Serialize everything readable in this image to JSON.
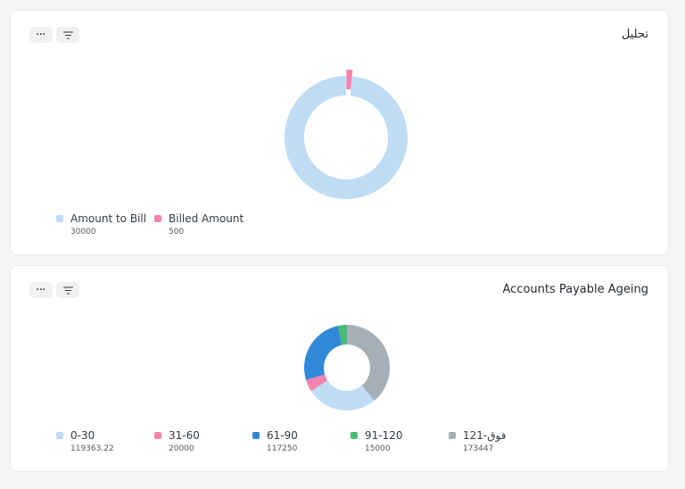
{
  "cards": [
    {
      "title": "تحليل",
      "more_label": "...",
      "chart_data": {
        "type": "pie",
        "title": "تحليل",
        "donut": true,
        "categories": [
          "Amount to Bill",
          "Billed Amount"
        ],
        "values": [
          30000,
          500
        ],
        "value_labels": [
          "30000",
          "500"
        ],
        "colors": [
          "#bfdcf5",
          "#f683ae"
        ],
        "legend_position": "bottom-left"
      }
    },
    {
      "title": "Accounts Payable Ageing",
      "more_label": "...",
      "chart_data": {
        "type": "pie",
        "title": "Accounts Payable Ageing",
        "donut": true,
        "categories": [
          "0-30",
          "31-60",
          "61-90",
          "91-120",
          "121-فوق"
        ],
        "values": [
          119363.22,
          20000,
          117250,
          15000,
          173447
        ],
        "value_labels": [
          "119363.22",
          "20000",
          "117250",
          "15000",
          "173447"
        ],
        "colors": [
          "#bfdcf5",
          "#f683ae",
          "#318ad8",
          "#48bb74",
          "#a5afb8"
        ],
        "legend_position": "bottom-left"
      }
    }
  ]
}
